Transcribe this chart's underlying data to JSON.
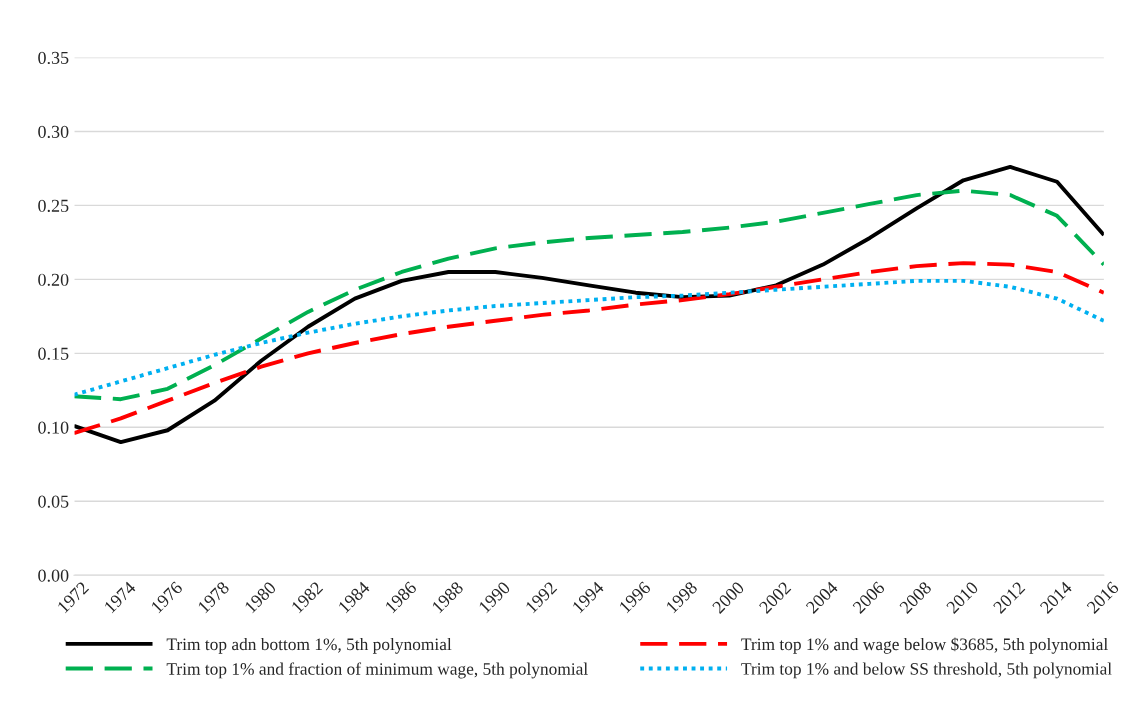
{
  "chart_data": {
    "type": "line",
    "x": [
      1972,
      1974,
      1976,
      1978,
      1980,
      1982,
      1984,
      1986,
      1988,
      1990,
      1992,
      1994,
      1996,
      1998,
      2000,
      2002,
      2004,
      2006,
      2008,
      2010,
      2012,
      2014,
      2016
    ],
    "series": [
      {
        "name": "Trim top adn bottom 1%, 5th polynomial",
        "color": "#000000",
        "line_style": "solid",
        "values": [
          0.101,
          0.09,
          0.098,
          0.118,
          0.145,
          0.168,
          0.187,
          0.199,
          0.205,
          0.205,
          0.201,
          0.196,
          0.191,
          0.188,
          0.189,
          0.196,
          0.21,
          0.228,
          0.248,
          0.267,
          0.276,
          0.266,
          0.23
        ]
      },
      {
        "name": "Trim top 1% and wage below $3685, 5th polynomial",
        "color": "#ff0000",
        "line_style": "dashed",
        "values": [
          0.096,
          0.106,
          0.118,
          0.13,
          0.141,
          0.15,
          0.157,
          0.163,
          0.168,
          0.172,
          0.176,
          0.179,
          0.183,
          0.186,
          0.19,
          0.195,
          0.2,
          0.205,
          0.209,
          0.211,
          0.21,
          0.205,
          0.191
        ]
      },
      {
        "name": "Trim top 1% and fraction of minimum wage, 5th polynomial",
        "color": "#00b050",
        "line_style": "dashed",
        "values": [
          0.121,
          0.119,
          0.126,
          0.142,
          0.16,
          0.178,
          0.193,
          0.205,
          0.214,
          0.221,
          0.225,
          0.228,
          0.23,
          0.232,
          0.235,
          0.239,
          0.245,
          0.251,
          0.257,
          0.26,
          0.257,
          0.243,
          0.21
        ]
      },
      {
        "name": "Trim top 1% and below SS threshold, 5th polynomial",
        "color": "#00b0f0",
        "line_style": "dotted",
        "values": [
          0.122,
          0.131,
          0.14,
          0.149,
          0.157,
          0.164,
          0.17,
          0.175,
          0.179,
          0.182,
          0.184,
          0.186,
          0.188,
          0.189,
          0.191,
          0.193,
          0.195,
          0.197,
          0.199,
          0.199,
          0.195,
          0.187,
          0.172
        ]
      }
    ],
    "xlim": [
      1972,
      2016
    ],
    "xticks": [
      1972,
      1974,
      1976,
      1978,
      1980,
      1982,
      1984,
      1986,
      1988,
      1990,
      1992,
      1994,
      1996,
      1998,
      2000,
      2002,
      2004,
      2006,
      2008,
      2010,
      2012,
      2014,
      2016
    ],
    "ylim": [
      0,
      0.35
    ],
    "yticks": [
      {
        "value": 0,
        "label": "0.00"
      },
      {
        "value": 0.05,
        "label": "0.05"
      },
      {
        "value": 0.1,
        "label": "0.10"
      },
      {
        "value": 0.15,
        "label": "0.15"
      },
      {
        "value": 0.2,
        "label": "0.20"
      },
      {
        "value": 0.25,
        "label": "0.25"
      },
      {
        "value": 0.3,
        "label": "0.30"
      },
      {
        "value": 0.35,
        "label": "0.35"
      }
    ],
    "grid": "y",
    "legend": "bottom",
    "marker": "none"
  }
}
